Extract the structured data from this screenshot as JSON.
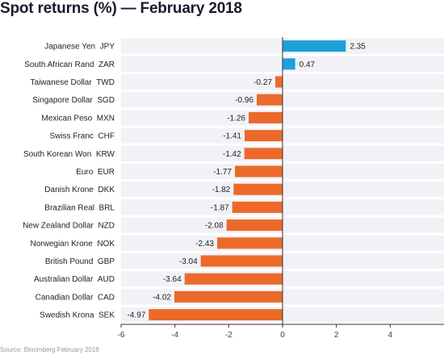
{
  "title": "Spot returns (%) — February 2018",
  "source": "Source: Bloomberg February 2018",
  "colors": {
    "positive": "#1ea0dc",
    "negative": "#eb6a2a",
    "band": "#f1f2f6",
    "axis": "#333333",
    "grid": "#ffffff"
  },
  "chart_data": {
    "type": "bar",
    "orientation": "horizontal",
    "title": "Spot returns (%) — February 2018",
    "categories": [
      {
        "name": "Japanese Yen",
        "code": "JPY"
      },
      {
        "name": "South African Rand",
        "code": "ZAR"
      },
      {
        "name": "Taiwanese Dollar",
        "code": "TWD"
      },
      {
        "name": "Singapore Dollar",
        "code": "SGD"
      },
      {
        "name": "Mexican Peso",
        "code": "MXN"
      },
      {
        "name": "Swiss Franc",
        "code": "CHF"
      },
      {
        "name": "South Korean Won",
        "code": "KRW"
      },
      {
        "name": "Euro",
        "code": "EUR"
      },
      {
        "name": "Danish Krone",
        "code": "DKK"
      },
      {
        "name": "Brazilian Real",
        "code": "BRL"
      },
      {
        "name": "New Zealand Dollar",
        "code": "NZD"
      },
      {
        "name": "Norwegian Krone",
        "code": "NOK"
      },
      {
        "name": "British Pound",
        "code": "GBP"
      },
      {
        "name": "Australian Dollar",
        "code": "AUD"
      },
      {
        "name": "Canadian Dollar",
        "code": "CAD"
      },
      {
        "name": "Swedish Krona",
        "code": "SEK"
      }
    ],
    "values": [
      2.35,
      0.47,
      -0.27,
      -0.96,
      -1.26,
      -1.41,
      -1.42,
      -1.77,
      -1.82,
      -1.87,
      -2.08,
      -2.43,
      -3.04,
      -3.64,
      -4.02,
      -4.97
    ],
    "value_labels": [
      "2.35",
      "0.47",
      "-0.27",
      "-0.96",
      "-1.26",
      "-1.41",
      "-1.42",
      "-1.77",
      "-1.82",
      "-1.87",
      "-2.08",
      "-2.43",
      "-3.04",
      "-3.64",
      "-4.02",
      "-4.97"
    ],
    "xlim": [
      -6,
      6
    ],
    "xticks": [
      -6,
      -4,
      -2,
      0,
      2,
      4
    ],
    "xtick_labels": [
      "-6",
      "-4",
      "-2",
      "0",
      "2",
      "4"
    ],
    "grid": false,
    "legend": "none"
  }
}
